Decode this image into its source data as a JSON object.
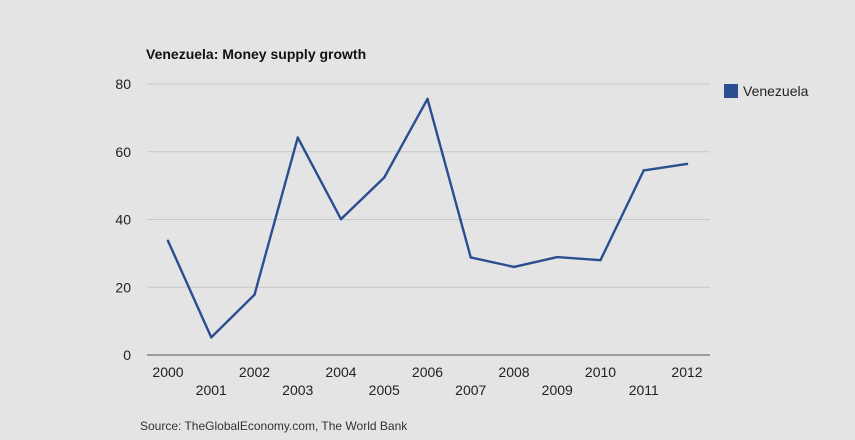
{
  "chart_data": {
    "type": "line",
    "title": "Venezuela: Money supply growth",
    "xlabel": "",
    "ylabel": "",
    "x": [
      "2000",
      "2001",
      "2002",
      "2003",
      "2004",
      "2005",
      "2006",
      "2007",
      "2008",
      "2009",
      "2010",
      "2011",
      "2012"
    ],
    "series": [
      {
        "name": "Venezuela",
        "color": "#2a4e8f",
        "values": [
          33.7,
          5.2,
          17.8,
          64.2,
          40.1,
          52.4,
          75.6,
          28.8,
          26.0,
          28.9,
          28.0,
          54.5,
          56.4
        ]
      }
    ],
    "ylim": [
      0,
      80
    ],
    "yticks": [
      0,
      20,
      40,
      60,
      80
    ],
    "grid": true,
    "legend_position": "right"
  },
  "source": "Source: TheGlobalEconomy.com, The World Bank"
}
